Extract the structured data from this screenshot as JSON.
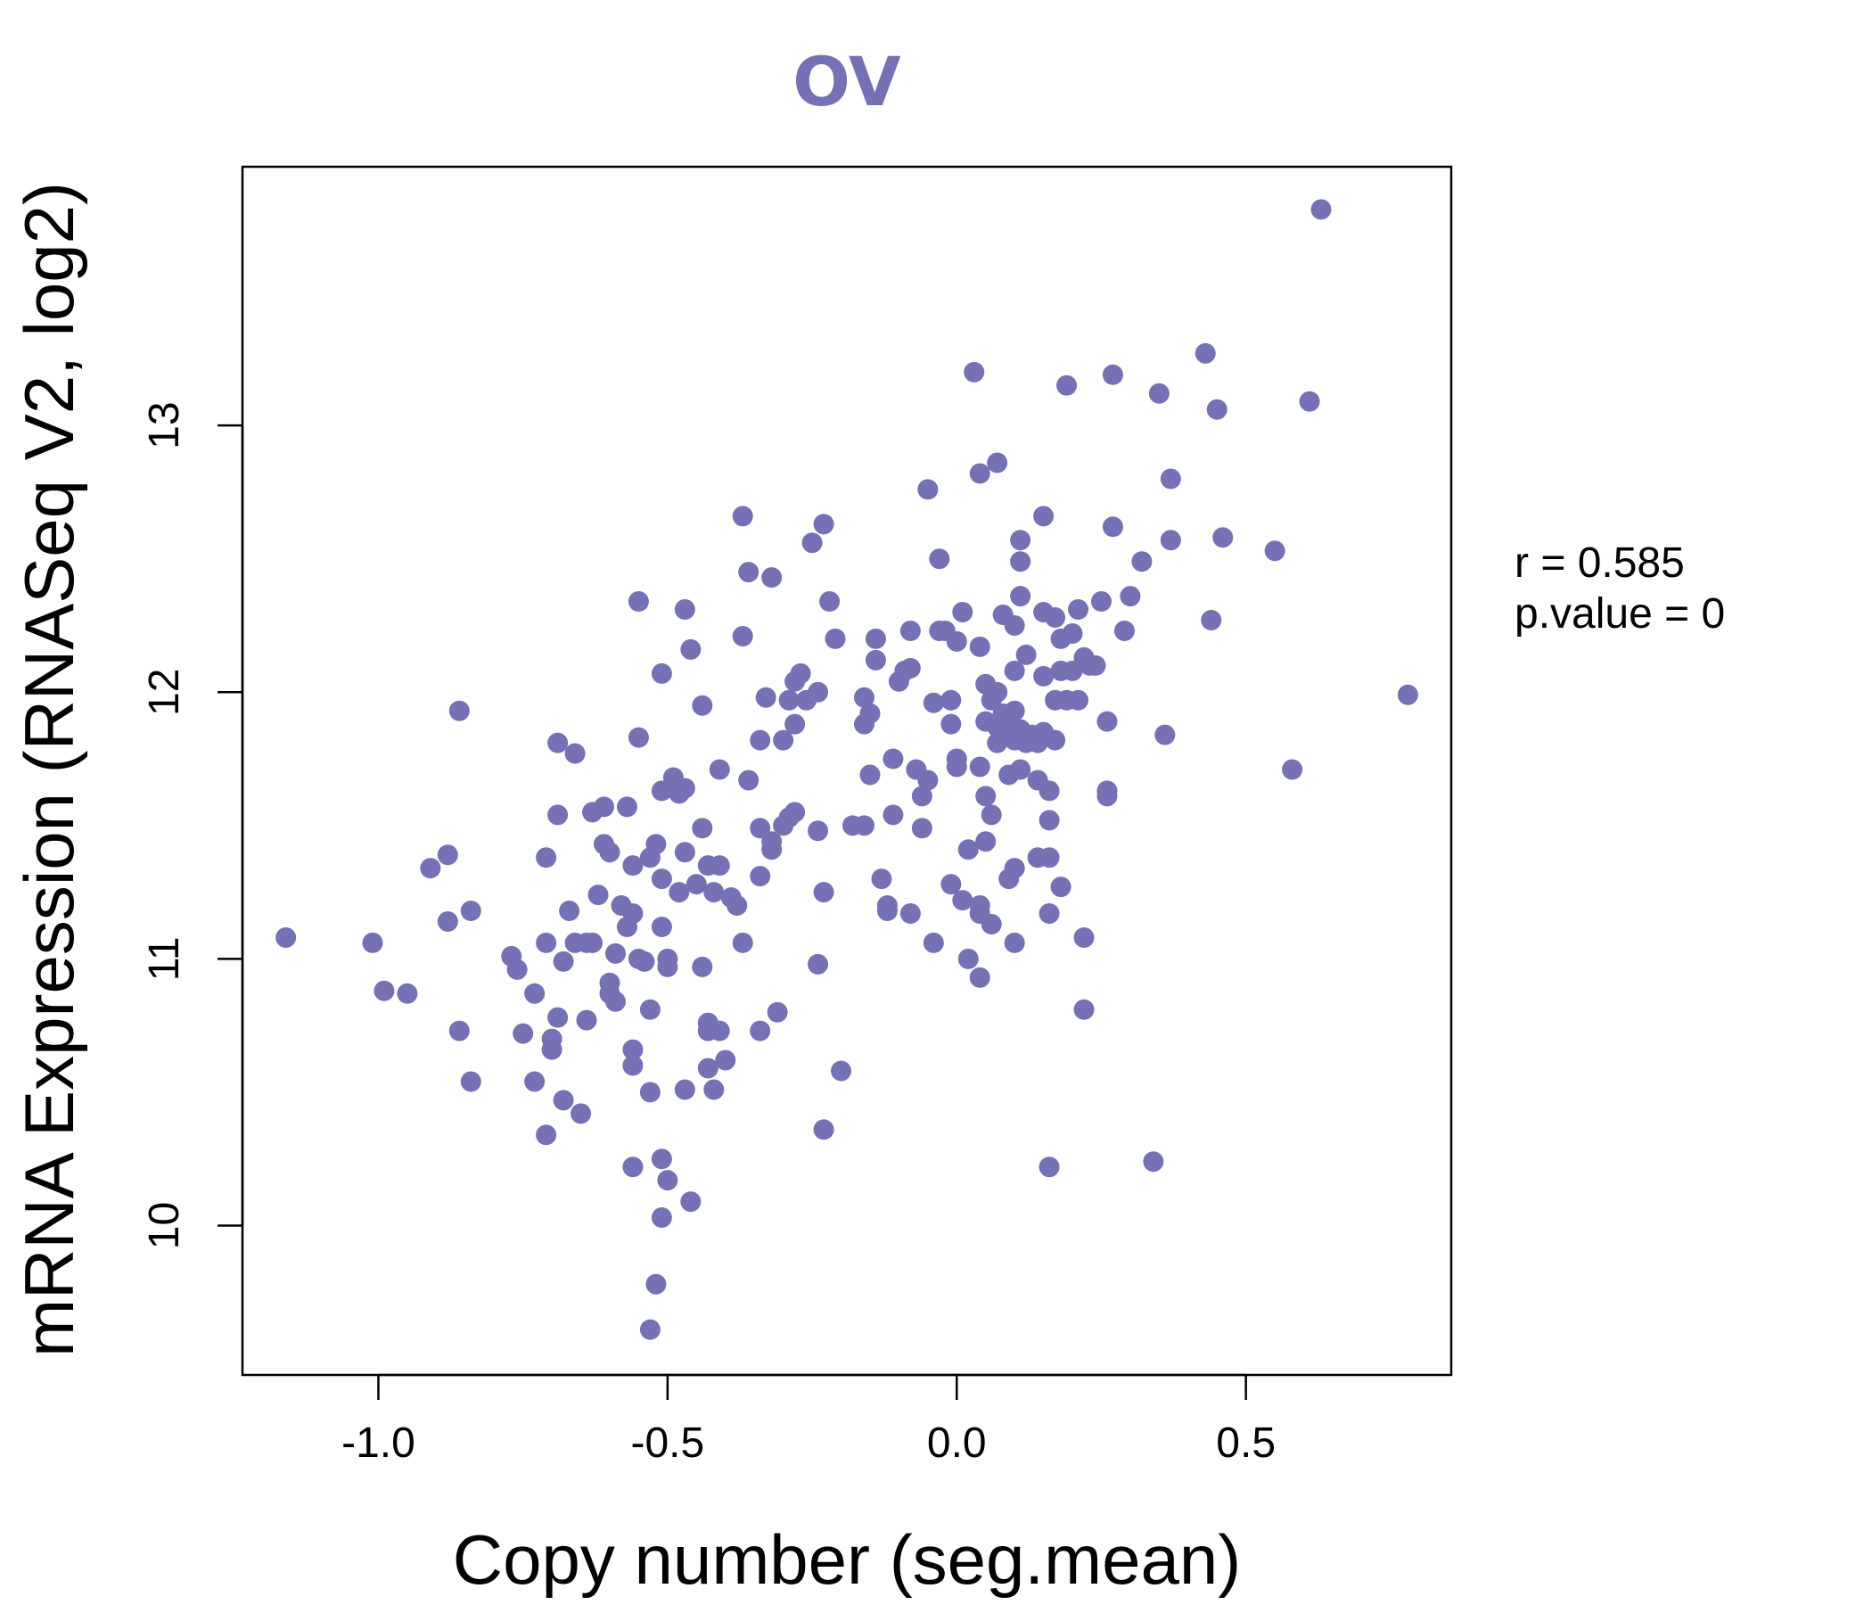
{
  "chart_data": {
    "type": "scatter",
    "title": "OV",
    "xlabel": "Copy number (seg.mean)",
    "ylabel": "mRNA Expression (RNASeq V2, log2)",
    "xlim": [
      -1.235,
      0.855
    ],
    "ylim": [
      9.44,
      13.97
    ],
    "xticks": [
      -1.0,
      -0.5,
      0.0,
      0.5
    ],
    "xtick_labels": [
      "-1.0",
      "-0.5",
      "0.0",
      "0.5"
    ],
    "yticks": [
      10,
      11,
      12,
      13
    ],
    "ytick_labels": [
      "10",
      "11",
      "12",
      "13"
    ],
    "grid": false,
    "legend": "none",
    "colors": {
      "points": "#7670b4",
      "title": "#7670b4",
      "axis": "#000000"
    },
    "annotation": {
      "r_label": "r = 0.585",
      "p_label": "p.value = 0"
    },
    "points": [
      [
        -1.16,
        11.08
      ],
      [
        -1.01,
        11.06
      ],
      [
        -0.99,
        10.88
      ],
      [
        -0.95,
        10.87
      ],
      [
        -0.91,
        11.34
      ],
      [
        -0.88,
        11.39
      ],
      [
        -0.88,
        11.14
      ],
      [
        -0.86,
        11.93
      ],
      [
        -0.86,
        10.73
      ],
      [
        -0.84,
        11.18
      ],
      [
        -0.84,
        10.54
      ],
      [
        -0.77,
        11.01
      ],
      [
        -0.76,
        10.96
      ],
      [
        -0.75,
        10.72
      ],
      [
        -0.73,
        10.87
      ],
      [
        -0.73,
        10.54
      ],
      [
        -0.71,
        11.38
      ],
      [
        -0.71,
        11.06
      ],
      [
        -0.71,
        10.34
      ],
      [
        -0.7,
        10.7
      ],
      [
        -0.7,
        10.66
      ],
      [
        -0.69,
        11.81
      ],
      [
        -0.69,
        11.54
      ],
      [
        -0.69,
        10.78
      ],
      [
        -0.68,
        10.99
      ],
      [
        -0.68,
        10.47
      ],
      [
        -0.67,
        11.18
      ],
      [
        -0.66,
        11.77
      ],
      [
        -0.66,
        11.06
      ],
      [
        -0.65,
        10.42
      ],
      [
        -0.64,
        11.06
      ],
      [
        -0.64,
        10.77
      ],
      [
        -0.63,
        11.55
      ],
      [
        -0.63,
        11.06
      ],
      [
        -0.62,
        11.24
      ],
      [
        -0.61,
        11.57
      ],
      [
        -0.61,
        11.43
      ],
      [
        -0.6,
        11.4
      ],
      [
        -0.6,
        10.91
      ],
      [
        -0.6,
        10.87
      ],
      [
        -0.59,
        11.02
      ],
      [
        -0.59,
        10.84
      ],
      [
        -0.58,
        11.2
      ],
      [
        -0.57,
        11.57
      ],
      [
        -0.57,
        11.12
      ],
      [
        -0.56,
        11.17
      ],
      [
        -0.56,
        11.35
      ],
      [
        -0.56,
        10.66
      ],
      [
        -0.56,
        10.6
      ],
      [
        -0.56,
        10.22
      ],
      [
        -0.55,
        12.34
      ],
      [
        -0.55,
        11.83
      ],
      [
        -0.55,
        11.0
      ],
      [
        -0.54,
        10.99
      ],
      [
        -0.53,
        11.38
      ],
      [
        -0.53,
        10.81
      ],
      [
        -0.53,
        10.5
      ],
      [
        -0.53,
        9.61
      ],
      [
        -0.52,
        9.78
      ],
      [
        -0.52,
        11.43
      ],
      [
        -0.51,
        11.3
      ],
      [
        -0.51,
        11.12
      ],
      [
        -0.51,
        11.63
      ],
      [
        -0.51,
        10.25
      ],
      [
        -0.51,
        10.03
      ],
      [
        -0.51,
        12.07
      ],
      [
        -0.5,
        10.17
      ],
      [
        -0.5,
        11.0
      ],
      [
        -0.5,
        10.97
      ],
      [
        -0.49,
        11.68
      ],
      [
        -0.49,
        11.64
      ],
      [
        -0.48,
        11.62
      ],
      [
        -0.48,
        11.25
      ],
      [
        -0.47,
        10.51
      ],
      [
        -0.47,
        11.4
      ],
      [
        -0.47,
        12.31
      ],
      [
        -0.47,
        11.64
      ],
      [
        -0.46,
        12.16
      ],
      [
        -0.46,
        10.09
      ],
      [
        -0.45,
        11.28
      ],
      [
        -0.44,
        11.95
      ],
      [
        -0.44,
        11.49
      ],
      [
        -0.44,
        10.97
      ],
      [
        -0.43,
        10.76
      ],
      [
        -0.43,
        10.73
      ],
      [
        -0.43,
        10.59
      ],
      [
        -0.43,
        11.35
      ],
      [
        -0.42,
        10.51
      ],
      [
        -0.42,
        11.25
      ],
      [
        -0.41,
        11.35
      ],
      [
        -0.41,
        11.71
      ],
      [
        -0.41,
        10.73
      ],
      [
        -0.4,
        10.62
      ],
      [
        -0.39,
        11.23
      ],
      [
        -0.38,
        11.2
      ],
      [
        -0.37,
        12.66
      ],
      [
        -0.37,
        12.21
      ],
      [
        -0.37,
        11.06
      ],
      [
        -0.36,
        12.45
      ],
      [
        -0.36,
        11.67
      ],
      [
        -0.34,
        11.82
      ],
      [
        -0.34,
        11.49
      ],
      [
        -0.34,
        11.31
      ],
      [
        -0.34,
        10.73
      ],
      [
        -0.33,
        11.98
      ],
      [
        -0.32,
        12.43
      ],
      [
        -0.32,
        11.44
      ],
      [
        -0.32,
        11.41
      ],
      [
        -0.31,
        10.8
      ],
      [
        -0.3,
        11.82
      ],
      [
        -0.3,
        11.5
      ],
      [
        -0.29,
        11.53
      ],
      [
        -0.29,
        11.97
      ],
      [
        -0.28,
        12.04
      ],
      [
        -0.28,
        11.88
      ],
      [
        -0.28,
        11.55
      ],
      [
        -0.27,
        12.07
      ],
      [
        -0.26,
        11.97
      ],
      [
        -0.25,
        12.56
      ],
      [
        -0.24,
        12.0
      ],
      [
        -0.24,
        11.48
      ],
      [
        -0.24,
        10.98
      ],
      [
        -0.23,
        12.63
      ],
      [
        -0.23,
        11.25
      ],
      [
        -0.23,
        10.36
      ],
      [
        -0.22,
        12.34
      ],
      [
        -0.21,
        12.2
      ],
      [
        -0.2,
        10.58
      ],
      [
        -0.18,
        11.5
      ],
      [
        -0.16,
        11.98
      ],
      [
        -0.16,
        11.88
      ],
      [
        -0.16,
        11.5
      ],
      [
        -0.15,
        11.92
      ],
      [
        -0.15,
        11.69
      ],
      [
        -0.14,
        12.12
      ],
      [
        -0.14,
        12.2
      ],
      [
        -0.13,
        11.3
      ],
      [
        -0.12,
        11.2
      ],
      [
        -0.12,
        11.18
      ],
      [
        -0.11,
        11.75
      ],
      [
        -0.11,
        11.54
      ],
      [
        -0.1,
        12.04
      ],
      [
        -0.09,
        12.08
      ],
      [
        -0.08,
        12.23
      ],
      [
        -0.08,
        12.09
      ],
      [
        -0.08,
        11.17
      ],
      [
        -0.07,
        11.71
      ],
      [
        -0.06,
        11.61
      ],
      [
        -0.06,
        11.49
      ],
      [
        -0.05,
        11.67
      ],
      [
        -0.05,
        12.76
      ],
      [
        -0.04,
        11.96
      ],
      [
        -0.04,
        11.06
      ],
      [
        -0.03,
        12.23
      ],
      [
        -0.03,
        12.5
      ],
      [
        -0.02,
        12.23
      ],
      [
        -0.01,
        11.97
      ],
      [
        -0.01,
        11.88
      ],
      [
        -0.01,
        11.28
      ],
      [
        0.0,
        12.19
      ],
      [
        0.0,
        11.75
      ],
      [
        0.0,
        11.72
      ],
      [
        0.01,
        11.22
      ],
      [
        0.01,
        12.3
      ],
      [
        0.02,
        11.0
      ],
      [
        0.02,
        11.41
      ],
      [
        0.03,
        13.2
      ],
      [
        0.04,
        12.82
      ],
      [
        0.04,
        12.17
      ],
      [
        0.04,
        11.2
      ],
      [
        0.04,
        11.17
      ],
      [
        0.04,
        10.93
      ],
      [
        0.04,
        11.72
      ],
      [
        0.05,
        12.03
      ],
      [
        0.05,
        11.89
      ],
      [
        0.05,
        11.61
      ],
      [
        0.05,
        11.44
      ],
      [
        0.06,
        11.54
      ],
      [
        0.06,
        11.13
      ],
      [
        0.06,
        11.97
      ],
      [
        0.07,
        12.0
      ],
      [
        0.07,
        12.86
      ],
      [
        0.07,
        11.87
      ],
      [
        0.07,
        11.81
      ],
      [
        0.08,
        11.85
      ],
      [
        0.08,
        11.92
      ],
      [
        0.08,
        12.29
      ],
      [
        0.09,
        11.89
      ],
      [
        0.09,
        11.3
      ],
      [
        0.09,
        11.69
      ],
      [
        0.1,
        11.93
      ],
      [
        0.1,
        11.34
      ],
      [
        0.1,
        12.08
      ],
      [
        0.1,
        11.06
      ],
      [
        0.1,
        11.82
      ],
      [
        0.1,
        12.25
      ],
      [
        0.11,
        12.57
      ],
      [
        0.11,
        12.49
      ],
      [
        0.11,
        12.36
      ],
      [
        0.11,
        11.86
      ],
      [
        0.11,
        11.71
      ],
      [
        0.12,
        11.81
      ],
      [
        0.12,
        12.14
      ],
      [
        0.13,
        11.84
      ],
      [
        0.14,
        11.38
      ],
      [
        0.14,
        11.81
      ],
      [
        0.14,
        11.67
      ],
      [
        0.15,
        12.66
      ],
      [
        0.15,
        11.85
      ],
      [
        0.15,
        12.3
      ],
      [
        0.15,
        12.06
      ],
      [
        0.16,
        11.52
      ],
      [
        0.16,
        11.63
      ],
      [
        0.16,
        11.38
      ],
      [
        0.16,
        11.17
      ],
      [
        0.16,
        10.22
      ],
      [
        0.17,
        12.28
      ],
      [
        0.17,
        11.82
      ],
      [
        0.17,
        11.97
      ],
      [
        0.18,
        12.2
      ],
      [
        0.18,
        12.08
      ],
      [
        0.18,
        11.27
      ],
      [
        0.19,
        13.15
      ],
      [
        0.19,
        11.97
      ],
      [
        0.2,
        12.22
      ],
      [
        0.2,
        12.08
      ],
      [
        0.21,
        12.31
      ],
      [
        0.21,
        11.97
      ],
      [
        0.22,
        11.08
      ],
      [
        0.22,
        10.81
      ],
      [
        0.22,
        12.13
      ],
      [
        0.23,
        12.1
      ],
      [
        0.24,
        12.1
      ],
      [
        0.25,
        12.34
      ],
      [
        0.26,
        11.89
      ],
      [
        0.26,
        11.63
      ],
      [
        0.26,
        11.61
      ],
      [
        0.27,
        13.19
      ],
      [
        0.27,
        12.62
      ],
      [
        0.29,
        12.23
      ],
      [
        0.3,
        12.36
      ],
      [
        0.32,
        12.49
      ],
      [
        0.34,
        10.24
      ],
      [
        0.35,
        13.12
      ],
      [
        0.36,
        11.84
      ],
      [
        0.37,
        12.8
      ],
      [
        0.37,
        12.57
      ],
      [
        0.43,
        13.27
      ],
      [
        0.44,
        12.27
      ],
      [
        0.45,
        13.06
      ],
      [
        0.46,
        12.58
      ],
      [
        0.55,
        12.53
      ],
      [
        0.58,
        11.71
      ],
      [
        0.61,
        13.09
      ],
      [
        0.63,
        13.81
      ],
      [
        0.78,
        11.99
      ]
    ]
  }
}
